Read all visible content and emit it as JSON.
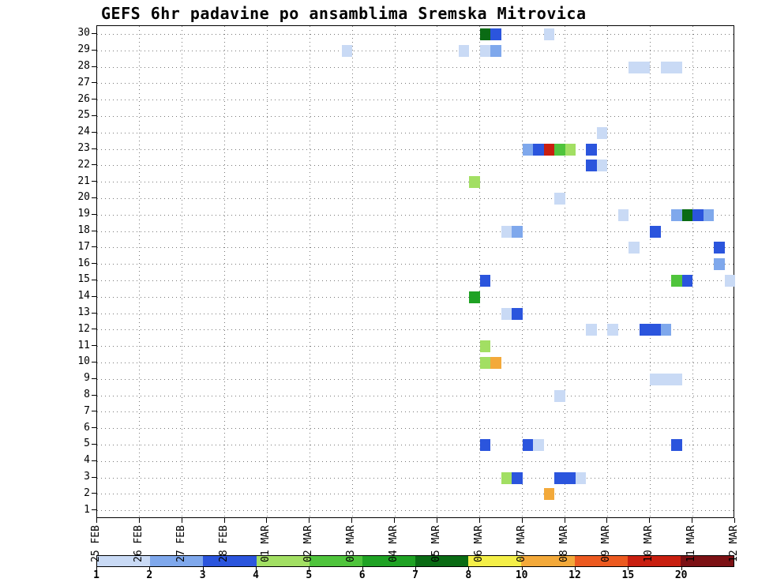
{
  "chart_data": {
    "type": "heatmap",
    "title": "GEFS 6hr padavine po ansamblima Sremska Mitrovica",
    "x_tick_labels": [
      "25 FEB",
      "26 FEB",
      "27 FEB",
      "28 FEB",
      "01 MAR",
      "02 MAR",
      "03 MAR",
      "04 MAR",
      "05 MAR",
      "06 MAR",
      "07 MAR",
      "08 MAR",
      "09 MAR",
      "10 MAR",
      "11 MAR",
      "12 MAR"
    ],
    "x_step_hours": 6,
    "x_steps_per_day": 4,
    "y_tick_labels": [
      30,
      29,
      28,
      27,
      26,
      25,
      24,
      23,
      22,
      21,
      20,
      19,
      18,
      17,
      16,
      15,
      14,
      13,
      12,
      11,
      10,
      9,
      8,
      7,
      6,
      5,
      4,
      3,
      2,
      1
    ],
    "y_axis_range": [
      1,
      30
    ],
    "grid": "dotted",
    "legend": {
      "position": "bottom",
      "tick_labels": [
        "1",
        "2",
        "3",
        "4",
        "5",
        "6",
        "7",
        "8",
        "10",
        "12",
        "15",
        "20"
      ],
      "colors": [
        "#c9daf5",
        "#7fa8ec",
        "#2b55dd",
        "#a2df63",
        "#4fc43c",
        "#1fa224",
        "#0a6b14",
        "#f4ef48",
        "#f3a93a",
        "#ec5a20",
        "#c81f10",
        "#7c1114"
      ]
    },
    "cells_format": [
      "ensemble_member",
      "time_index_6h_steps_from_25FEB_00h",
      "color_level_1_to_12"
    ],
    "cells": [
      [
        30,
        36,
        7
      ],
      [
        30,
        37,
        3
      ],
      [
        30,
        42,
        1
      ],
      [
        29,
        23,
        1
      ],
      [
        29,
        34,
        1
      ],
      [
        29,
        36,
        1
      ],
      [
        29,
        37,
        2
      ],
      [
        28,
        50,
        1
      ],
      [
        28,
        51,
        1
      ],
      [
        28,
        53,
        1
      ],
      [
        28,
        54,
        1
      ],
      [
        24,
        47,
        1
      ],
      [
        23,
        40,
        2
      ],
      [
        23,
        41,
        3
      ],
      [
        23,
        42,
        11
      ],
      [
        23,
        43,
        5
      ],
      [
        23,
        44,
        4
      ],
      [
        23,
        46,
        3
      ],
      [
        22,
        46,
        3
      ],
      [
        22,
        47,
        1
      ],
      [
        21,
        35,
        4
      ],
      [
        20,
        43,
        1
      ],
      [
        19,
        49,
        1
      ],
      [
        19,
        54,
        2
      ],
      [
        19,
        55,
        7
      ],
      [
        19,
        56,
        3
      ],
      [
        19,
        57,
        2
      ],
      [
        18,
        38,
        1
      ],
      [
        18,
        39,
        2
      ],
      [
        18,
        52,
        3
      ],
      [
        17,
        50,
        1
      ],
      [
        17,
        58,
        3
      ],
      [
        16,
        58,
        2
      ],
      [
        15,
        36,
        3
      ],
      [
        15,
        54,
        5
      ],
      [
        15,
        55,
        3
      ],
      [
        15,
        59,
        1
      ],
      [
        14,
        35,
        6
      ],
      [
        13,
        38,
        1
      ],
      [
        13,
        39,
        3
      ],
      [
        12,
        46,
        1
      ],
      [
        12,
        48,
        1
      ],
      [
        12,
        51,
        3
      ],
      [
        12,
        52,
        3
      ],
      [
        12,
        53,
        2
      ],
      [
        11,
        36,
        4
      ],
      [
        10,
        36,
        4
      ],
      [
        10,
        37,
        9
      ],
      [
        9,
        52,
        1
      ],
      [
        9,
        53,
        1
      ],
      [
        9,
        54,
        1
      ],
      [
        8,
        43,
        1
      ],
      [
        5,
        36,
        3
      ],
      [
        5,
        40,
        3
      ],
      [
        5,
        41,
        1
      ],
      [
        5,
        54,
        3
      ],
      [
        3,
        38,
        4
      ],
      [
        3,
        39,
        3
      ],
      [
        3,
        43,
        3
      ],
      [
        3,
        44,
        3
      ],
      [
        3,
        45,
        1
      ],
      [
        2,
        42,
        9
      ]
    ]
  }
}
